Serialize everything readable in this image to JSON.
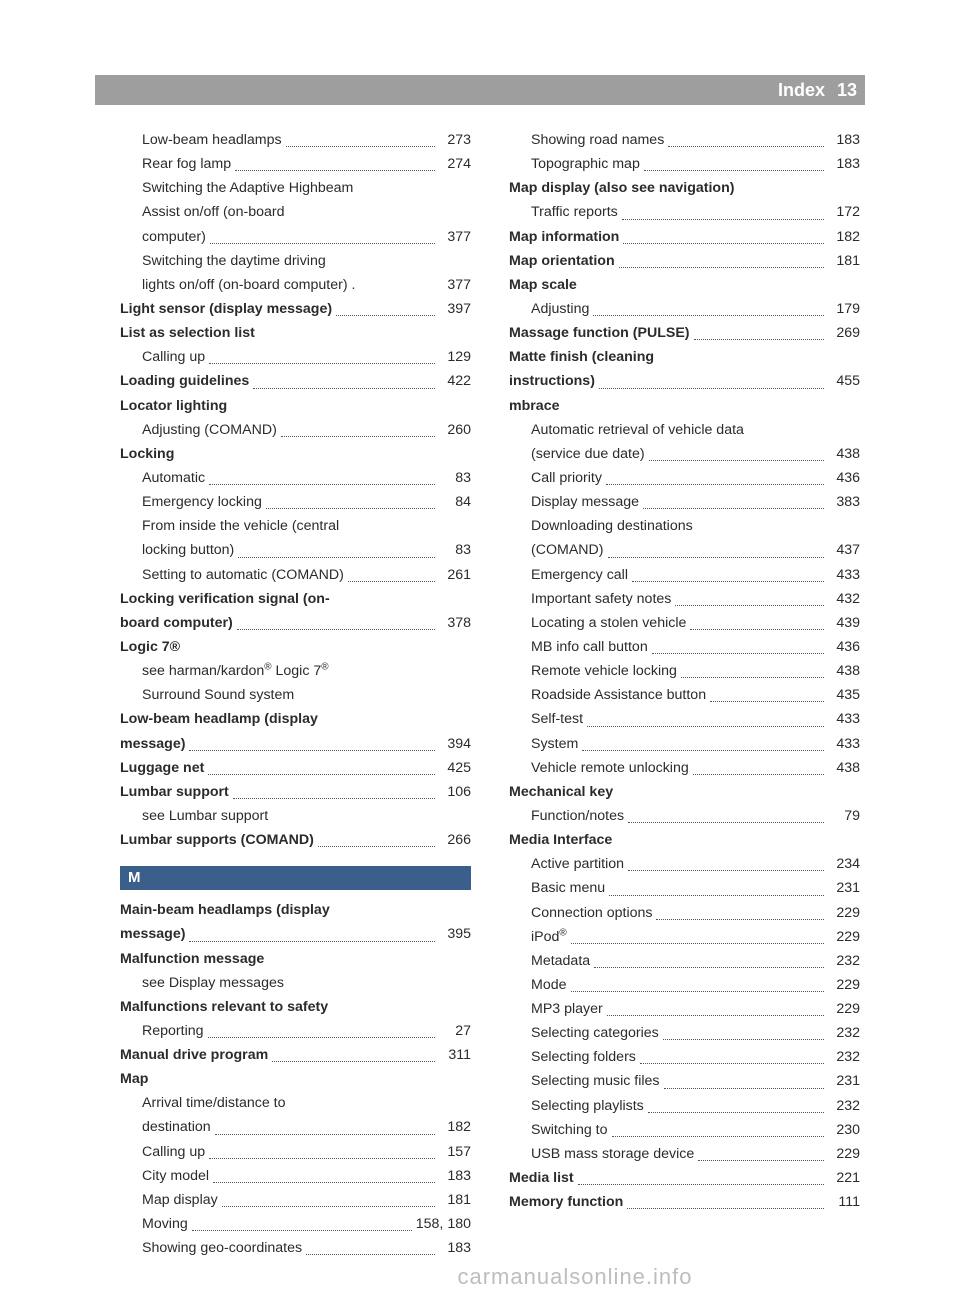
{
  "header": {
    "title": "Index",
    "page": "13"
  },
  "footer": "carmanualsonline.info",
  "section_letter": "M",
  "left": [
    {
      "indent": 2,
      "bold": false,
      "lines": [
        "Low-beam headlamps"
      ],
      "page": "273"
    },
    {
      "indent": 2,
      "bold": false,
      "lines": [
        "Rear fog lamp"
      ],
      "page": "274"
    },
    {
      "indent": 2,
      "bold": false,
      "lines": [
        "Switching the Adaptive Highbeam",
        "Assist on/off (on-board",
        "computer)"
      ],
      "page": "377"
    },
    {
      "indent": 2,
      "bold": false,
      "lines": [
        "Switching the daytime driving",
        "lights on/off (on-board computer) ."
      ],
      "page": "377",
      "nodots": true
    },
    {
      "indent": 1,
      "bold": true,
      "lines": [
        "Light sensor (display message)"
      ],
      "page": "397"
    },
    {
      "indent": 1,
      "bold": true,
      "lines": [
        "List as selection list"
      ],
      "page": ""
    },
    {
      "indent": 2,
      "bold": false,
      "lines": [
        "Calling up"
      ],
      "page": "129"
    },
    {
      "indent": 1,
      "bold": true,
      "lines": [
        "Loading guidelines"
      ],
      "page": "422"
    },
    {
      "indent": 1,
      "bold": true,
      "lines": [
        "Locator lighting"
      ],
      "page": ""
    },
    {
      "indent": 2,
      "bold": false,
      "lines": [
        "Adjusting (COMAND)"
      ],
      "page": "260"
    },
    {
      "indent": 1,
      "bold": true,
      "lines": [
        "Locking"
      ],
      "page": ""
    },
    {
      "indent": 2,
      "bold": false,
      "lines": [
        "Automatic"
      ],
      "page": "83"
    },
    {
      "indent": 2,
      "bold": false,
      "lines": [
        "Emergency locking"
      ],
      "page": "84"
    },
    {
      "indent": 2,
      "bold": false,
      "lines": [
        "From inside the vehicle (central",
        "locking button)"
      ],
      "page": "83"
    },
    {
      "indent": 2,
      "bold": false,
      "lines": [
        "Setting to automatic (COMAND)"
      ],
      "page": "261"
    },
    {
      "indent": 1,
      "bold": true,
      "lines": [
        "Locking verification signal (on-",
        "board computer)"
      ],
      "page": "378"
    },
    {
      "indent": 1,
      "bold": true,
      "lines": [
        "Logic 7®"
      ],
      "page": "",
      "html": true,
      "html_text": "Logic 7<sup>®</sup>"
    },
    {
      "indent": 2,
      "bold": false,
      "lines": [
        "see harman/kardon® Logic 7®",
        "Surround Sound system"
      ],
      "page": "",
      "html": true,
      "html_lines": [
        "see harman/kardon<sup>®</sup> Logic 7<sup>®</sup>",
        "Surround Sound system"
      ]
    },
    {
      "indent": 1,
      "bold": true,
      "lines": [
        "Low-beam headlamp (display",
        "message)"
      ],
      "page": "394"
    },
    {
      "indent": 1,
      "bold": true,
      "lines": [
        "Luggage net"
      ],
      "page": "425"
    },
    {
      "indent": 1,
      "bold": true,
      "lines": [
        "Lumbar support"
      ],
      "page": "106"
    },
    {
      "indent": 2,
      "bold": false,
      "lines": [
        "see Lumbar support"
      ],
      "page": ""
    },
    {
      "indent": 1,
      "bold": true,
      "lines": [
        "Lumbar supports (COMAND)"
      ],
      "page": "266"
    }
  ],
  "left_m": [
    {
      "indent": 1,
      "bold": true,
      "lines": [
        "Main-beam headlamps (display",
        "message)"
      ],
      "page": "395"
    },
    {
      "indent": 1,
      "bold": true,
      "lines": [
        "Malfunction message"
      ],
      "page": ""
    },
    {
      "indent": 2,
      "bold": false,
      "lines": [
        "see Display messages"
      ],
      "page": ""
    },
    {
      "indent": 1,
      "bold": true,
      "lines": [
        "Malfunctions relevant to safety"
      ],
      "page": ""
    },
    {
      "indent": 2,
      "bold": false,
      "lines": [
        "Reporting"
      ],
      "page": "27"
    },
    {
      "indent": 1,
      "bold": true,
      "lines": [
        "Manual drive program"
      ],
      "page": "311"
    },
    {
      "indent": 1,
      "bold": true,
      "lines": [
        "Map"
      ],
      "page": ""
    },
    {
      "indent": 2,
      "bold": false,
      "lines": [
        "Arrival time/distance to",
        "destination"
      ],
      "page": "182"
    },
    {
      "indent": 2,
      "bold": false,
      "lines": [
        "Calling up"
      ],
      "page": "157"
    },
    {
      "indent": 2,
      "bold": false,
      "lines": [
        "City model"
      ],
      "page": "183"
    },
    {
      "indent": 2,
      "bold": false,
      "lines": [
        "Map display"
      ],
      "page": "181"
    },
    {
      "indent": 2,
      "bold": false,
      "lines": [
        "Moving"
      ],
      "page": "158, 180"
    },
    {
      "indent": 2,
      "bold": false,
      "lines": [
        "Showing geo-coordinates"
      ],
      "page": "183"
    }
  ],
  "right": [
    {
      "indent": 2,
      "bold": false,
      "lines": [
        "Showing road names"
      ],
      "page": "183"
    },
    {
      "indent": 2,
      "bold": false,
      "lines": [
        "Topographic map"
      ],
      "page": "183"
    },
    {
      "indent": 1,
      "bold": true,
      "lines": [
        "Map display (also see navigation)"
      ],
      "page": ""
    },
    {
      "indent": 2,
      "bold": false,
      "lines": [
        "Traffic reports"
      ],
      "page": "172"
    },
    {
      "indent": 1,
      "bold": true,
      "lines": [
        "Map information"
      ],
      "page": "182"
    },
    {
      "indent": 1,
      "bold": true,
      "lines": [
        "Map orientation"
      ],
      "page": "181"
    },
    {
      "indent": 1,
      "bold": true,
      "lines": [
        "Map scale"
      ],
      "page": ""
    },
    {
      "indent": 2,
      "bold": false,
      "lines": [
        "Adjusting"
      ],
      "page": "179"
    },
    {
      "indent": 1,
      "bold": true,
      "lines": [
        "Massage function (PULSE)"
      ],
      "page": "269"
    },
    {
      "indent": 1,
      "bold": true,
      "lines": [
        "Matte finish (cleaning",
        "instructions)"
      ],
      "page": "455"
    },
    {
      "indent": 1,
      "bold": true,
      "lines": [
        "mbrace"
      ],
      "page": ""
    },
    {
      "indent": 2,
      "bold": false,
      "lines": [
        "Automatic retrieval of vehicle data",
        "(service due date)"
      ],
      "page": "438"
    },
    {
      "indent": 2,
      "bold": false,
      "lines": [
        "Call priority"
      ],
      "page": "436"
    },
    {
      "indent": 2,
      "bold": false,
      "lines": [
        "Display message"
      ],
      "page": "383"
    },
    {
      "indent": 2,
      "bold": false,
      "lines": [
        "Downloading destinations",
        "(COMAND)"
      ],
      "page": "437"
    },
    {
      "indent": 2,
      "bold": false,
      "lines": [
        "Emergency call"
      ],
      "page": "433"
    },
    {
      "indent": 2,
      "bold": false,
      "lines": [
        "Important safety notes"
      ],
      "page": "432"
    },
    {
      "indent": 2,
      "bold": false,
      "lines": [
        "Locating a stolen vehicle"
      ],
      "page": "439"
    },
    {
      "indent": 2,
      "bold": false,
      "lines": [
        "MB info call button"
      ],
      "page": "436"
    },
    {
      "indent": 2,
      "bold": false,
      "lines": [
        "Remote vehicle locking"
      ],
      "page": "438"
    },
    {
      "indent": 2,
      "bold": false,
      "lines": [
        "Roadside Assistance button"
      ],
      "page": "435"
    },
    {
      "indent": 2,
      "bold": false,
      "lines": [
        "Self-test"
      ],
      "page": "433"
    },
    {
      "indent": 2,
      "bold": false,
      "lines": [
        "System"
      ],
      "page": "433"
    },
    {
      "indent": 2,
      "bold": false,
      "lines": [
        "Vehicle remote unlocking"
      ],
      "page": "438"
    },
    {
      "indent": 1,
      "bold": true,
      "lines": [
        "Mechanical key"
      ],
      "page": ""
    },
    {
      "indent": 2,
      "bold": false,
      "lines": [
        "Function/notes"
      ],
      "page": "79"
    },
    {
      "indent": 1,
      "bold": true,
      "lines": [
        "Media Interface"
      ],
      "page": ""
    },
    {
      "indent": 2,
      "bold": false,
      "lines": [
        "Active partition"
      ],
      "page": "234"
    },
    {
      "indent": 2,
      "bold": false,
      "lines": [
        "Basic menu"
      ],
      "page": "231"
    },
    {
      "indent": 2,
      "bold": false,
      "lines": [
        "Connection options"
      ],
      "page": "229"
    },
    {
      "indent": 2,
      "bold": false,
      "lines": [
        "iPod®"
      ],
      "page": "229",
      "html": true,
      "html_text": "iPod<sup>®</sup>"
    },
    {
      "indent": 2,
      "bold": false,
      "lines": [
        "Metadata"
      ],
      "page": "232"
    },
    {
      "indent": 2,
      "bold": false,
      "lines": [
        "Mode"
      ],
      "page": "229"
    },
    {
      "indent": 2,
      "bold": false,
      "lines": [
        "MP3 player"
      ],
      "page": "229"
    },
    {
      "indent": 2,
      "bold": false,
      "lines": [
        "Selecting categories"
      ],
      "page": "232"
    },
    {
      "indent": 2,
      "bold": false,
      "lines": [
        "Selecting folders"
      ],
      "page": "232"
    },
    {
      "indent": 2,
      "bold": false,
      "lines": [
        "Selecting music files"
      ],
      "page": "231"
    },
    {
      "indent": 2,
      "bold": false,
      "lines": [
        "Selecting playlists"
      ],
      "page": "232"
    },
    {
      "indent": 2,
      "bold": false,
      "lines": [
        "Switching to"
      ],
      "page": "230"
    },
    {
      "indent": 2,
      "bold": false,
      "lines": [
        "USB mass storage device"
      ],
      "page": "229"
    },
    {
      "indent": 1,
      "bold": true,
      "lines": [
        "Media list"
      ],
      "page": "221"
    },
    {
      "indent": 1,
      "bold": true,
      "lines": [
        "Memory function"
      ],
      "page": "111"
    }
  ]
}
